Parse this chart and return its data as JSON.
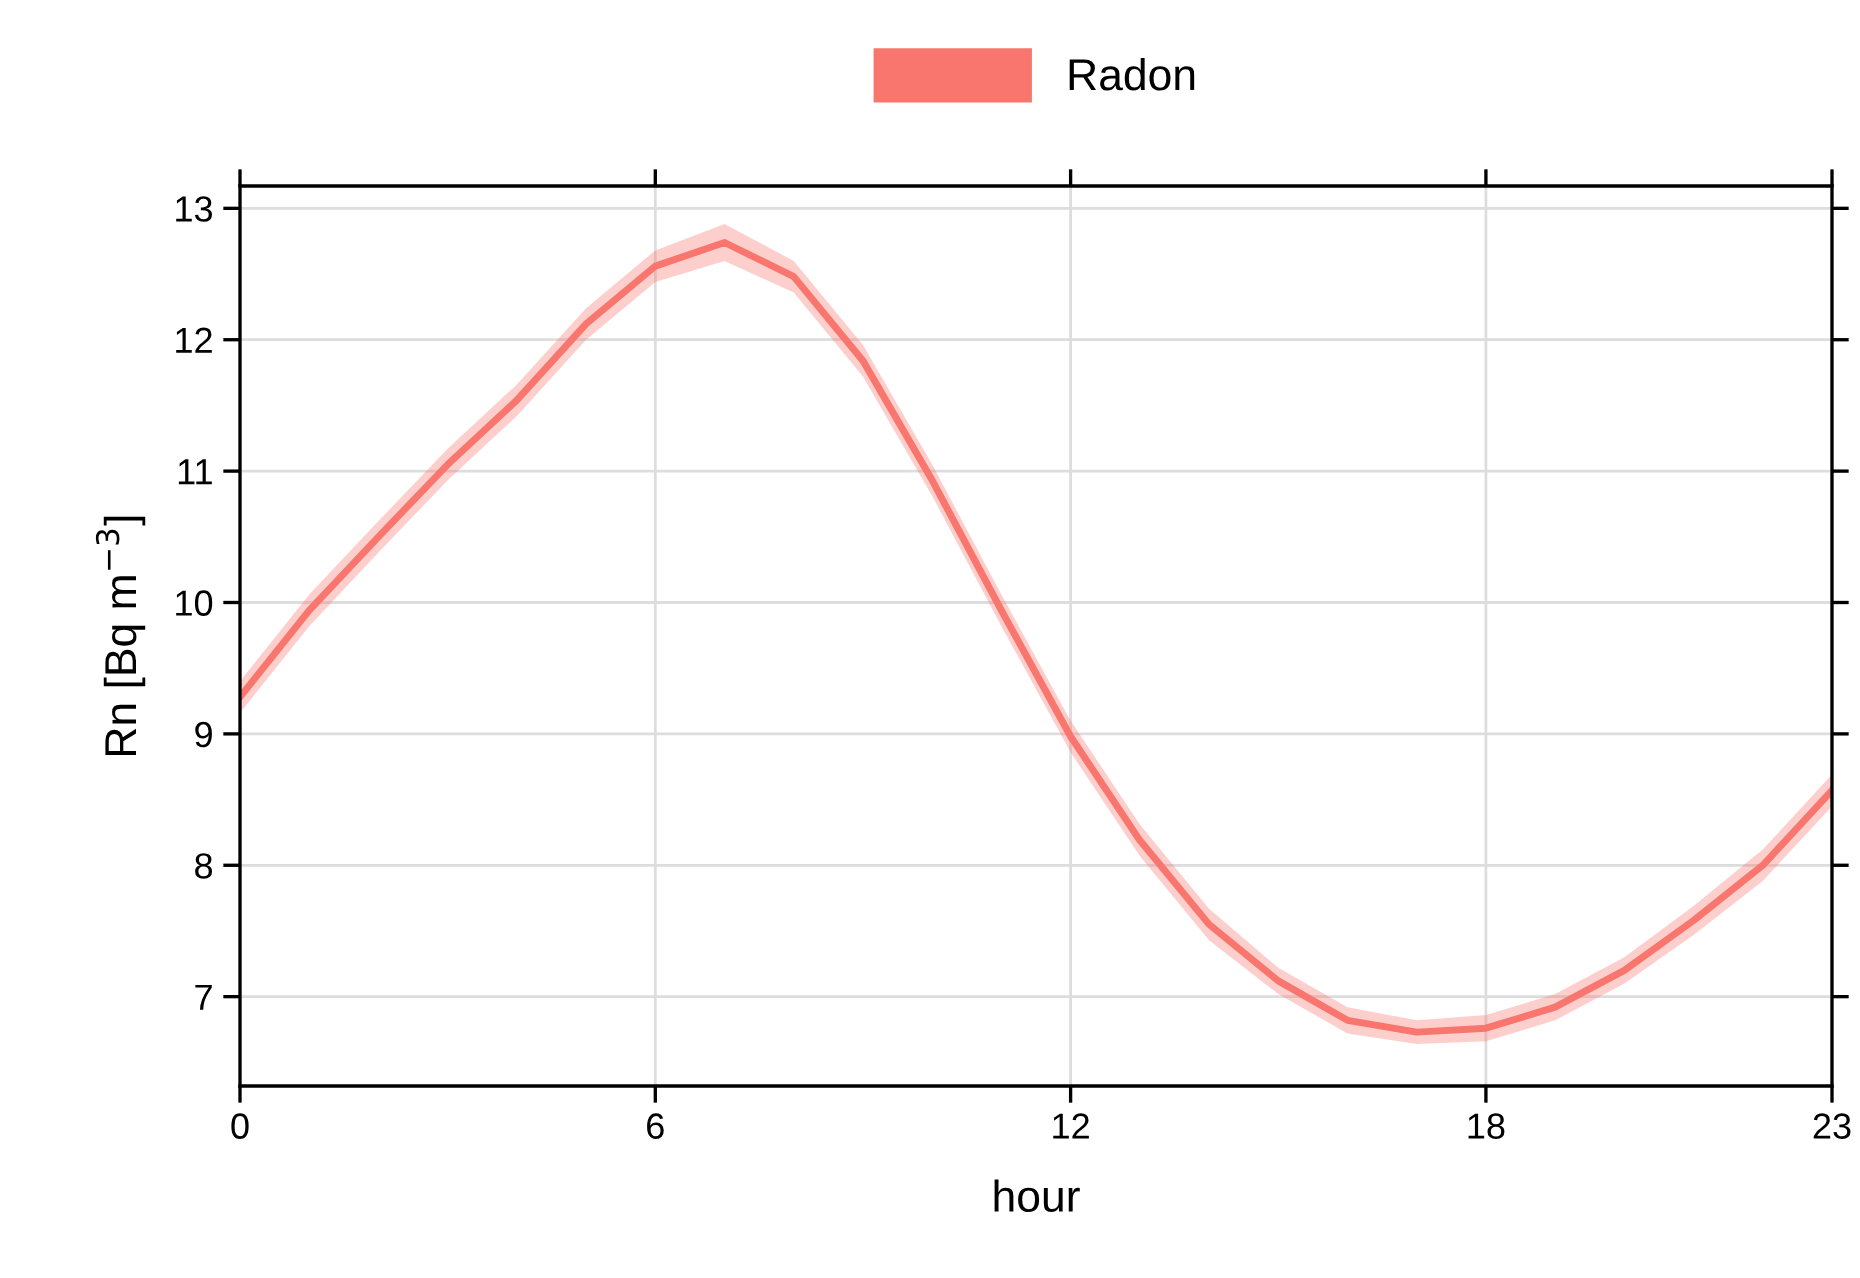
{
  "chart_data": {
    "type": "line",
    "xlabel": "hour",
    "ylabel": "Rn [Bq m$^{−3}$]",
    "x": [
      0,
      1,
      2,
      3,
      4,
      5,
      6,
      7,
      8,
      9,
      10,
      11,
      12,
      13,
      14,
      15,
      16,
      17,
      18,
      19,
      20,
      21,
      22,
      23
    ],
    "series": [
      {
        "name": "Radon",
        "color": "#f8766d",
        "values": [
          9.28,
          9.94,
          10.5,
          11.05,
          11.54,
          12.12,
          12.56,
          12.74,
          12.48,
          11.84,
          10.93,
          9.94,
          8.98,
          8.19,
          7.55,
          7.12,
          6.82,
          6.73,
          6.76,
          6.92,
          7.2,
          7.58,
          8.0,
          8.57
        ],
        "lower": [
          9.16,
          9.82,
          10.38,
          10.93,
          11.42,
          12.0,
          12.44,
          12.6,
          12.36,
          11.72,
          10.81,
          9.82,
          8.86,
          8.07,
          7.43,
          7.02,
          6.72,
          6.64,
          6.66,
          6.82,
          7.1,
          7.47,
          7.88,
          8.45
        ],
        "upper": [
          9.4,
          10.06,
          10.62,
          11.17,
          11.66,
          12.24,
          12.68,
          12.88,
          12.6,
          11.96,
          11.05,
          10.06,
          9.1,
          8.31,
          7.67,
          7.22,
          6.92,
          6.82,
          6.86,
          7.02,
          7.3,
          7.69,
          8.12,
          8.69
        ]
      }
    ],
    "xlim": [
      0,
      23
    ],
    "xticks": [
      0,
      6,
      12,
      18,
      23
    ],
    "ylim": [
      6.32,
      13.17
    ],
    "yticks": [
      7,
      8,
      9,
      10,
      11,
      12,
      13
    ],
    "grid": true,
    "legend": "top",
    "line_style": "solid",
    "marker": "none"
  }
}
